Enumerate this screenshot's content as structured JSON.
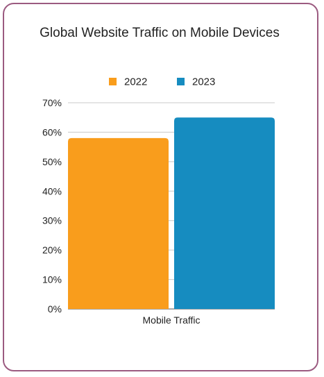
{
  "chart_data": {
    "type": "bar",
    "title": "Global Website Traffic on Mobile Devices",
    "categories": [
      "Mobile Traffic"
    ],
    "series": [
      {
        "name": "2022",
        "values": [
          58
        ],
        "color": "#f99d1c"
      },
      {
        "name": "2023",
        "values": [
          65
        ],
        "color": "#168cc0"
      }
    ],
    "yticks": [
      "0%",
      "10%",
      "20%",
      "30%",
      "40%",
      "50%",
      "60%",
      "70%"
    ],
    "ylim": [
      0,
      70
    ],
    "grid": true,
    "legend": "top-center",
    "xlabel": "",
    "ylabel": ""
  }
}
